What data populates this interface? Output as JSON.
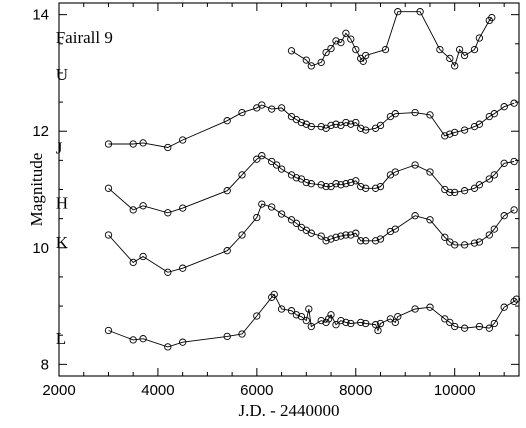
{
  "chart_data": {
    "type": "scatter",
    "title": "",
    "xlabel": "J.D. - 2440000",
    "ylabel": "Magnitude",
    "xlim": [
      2000,
      11300
    ],
    "ylim": [
      14.2,
      7.8
    ],
    "y_inverted": true,
    "x_ticks": [
      2000,
      4000,
      6000,
      8000,
      10000
    ],
    "y_ticks": [
      8,
      10,
      12,
      14
    ],
    "grid": false,
    "legend": "none",
    "annotations": [
      "Fairall 9"
    ],
    "series": [
      {
        "name": "L",
        "connected": true,
        "points": [
          [
            3000,
            8.58
          ],
          [
            3500,
            8.42
          ],
          [
            3700,
            8.44
          ],
          [
            4200,
            8.3
          ],
          [
            4500,
            8.38
          ],
          [
            5400,
            8.48
          ],
          [
            5700,
            8.52
          ],
          [
            6000,
            8.83
          ],
          [
            6300,
            9.15
          ],
          [
            6350,
            9.2
          ],
          [
            6500,
            8.95
          ],
          [
            6700,
            8.92
          ],
          [
            6800,
            8.85
          ],
          [
            6900,
            8.82
          ],
          [
            7000,
            8.75
          ],
          [
            7050,
            8.95
          ],
          [
            7100,
            8.65
          ],
          [
            7300,
            8.75
          ],
          [
            7400,
            8.72
          ],
          [
            7450,
            8.78
          ],
          [
            7500,
            8.85
          ],
          [
            7600,
            8.68
          ],
          [
            7700,
            8.75
          ],
          [
            7800,
            8.72
          ],
          [
            7900,
            8.7
          ],
          [
            8100,
            8.72
          ],
          [
            8200,
            8.7
          ],
          [
            8400,
            8.68
          ],
          [
            8450,
            8.58
          ],
          [
            8500,
            8.7
          ],
          [
            8700,
            8.78
          ],
          [
            8800,
            8.72
          ],
          [
            8850,
            8.82
          ],
          [
            9200,
            8.95
          ],
          [
            9500,
            8.98
          ],
          [
            9800,
            8.78
          ],
          [
            9900,
            8.72
          ],
          [
            10000,
            8.65
          ],
          [
            10200,
            8.62
          ],
          [
            10500,
            8.65
          ],
          [
            10700,
            8.62
          ],
          [
            10800,
            8.7
          ],
          [
            11000,
            8.98
          ],
          [
            11200,
            9.08
          ],
          [
            11250,
            9.12
          ]
        ]
      },
      {
        "name": "K",
        "connected": true,
        "points": [
          [
            3000,
            10.22
          ],
          [
            3500,
            9.75
          ],
          [
            3700,
            9.85
          ],
          [
            4200,
            9.58
          ],
          [
            4500,
            9.65
          ],
          [
            5400,
            9.95
          ],
          [
            5700,
            10.22
          ],
          [
            6000,
            10.52
          ],
          [
            6100,
            10.75
          ],
          [
            6300,
            10.7
          ],
          [
            6500,
            10.58
          ],
          [
            6700,
            10.48
          ],
          [
            6800,
            10.42
          ],
          [
            6900,
            10.35
          ],
          [
            7000,
            10.3
          ],
          [
            7100,
            10.25
          ],
          [
            7300,
            10.2
          ],
          [
            7400,
            10.12
          ],
          [
            7500,
            10.15
          ],
          [
            7600,
            10.18
          ],
          [
            7700,
            10.2
          ],
          [
            7800,
            10.22
          ],
          [
            7900,
            10.22
          ],
          [
            8000,
            10.25
          ],
          [
            8100,
            10.12
          ],
          [
            8200,
            10.12
          ],
          [
            8400,
            10.12
          ],
          [
            8500,
            10.15
          ],
          [
            8700,
            10.28
          ],
          [
            8800,
            10.32
          ],
          [
            9200,
            10.55
          ],
          [
            9500,
            10.48
          ],
          [
            9800,
            10.18
          ],
          [
            9900,
            10.1
          ],
          [
            10000,
            10.05
          ],
          [
            10200,
            10.05
          ],
          [
            10400,
            10.08
          ],
          [
            10500,
            10.1
          ],
          [
            10700,
            10.22
          ],
          [
            10800,
            10.32
          ],
          [
            11000,
            10.55
          ],
          [
            11200,
            10.65
          ]
        ]
      },
      {
        "name": "H",
        "connected": true,
        "points": [
          [
            3000,
            11.02
          ],
          [
            3500,
            10.65
          ],
          [
            3700,
            10.72
          ],
          [
            4200,
            10.6
          ],
          [
            4500,
            10.68
          ],
          [
            5400,
            10.98
          ],
          [
            5700,
            11.25
          ],
          [
            6000,
            11.52
          ],
          [
            6100,
            11.58
          ],
          [
            6300,
            11.48
          ],
          [
            6400,
            11.42
          ],
          [
            6500,
            11.35
          ],
          [
            6700,
            11.25
          ],
          [
            6800,
            11.2
          ],
          [
            6900,
            11.18
          ],
          [
            7000,
            11.12
          ],
          [
            7100,
            11.1
          ],
          [
            7300,
            11.08
          ],
          [
            7400,
            11.05
          ],
          [
            7500,
            11.05
          ],
          [
            7600,
            11.1
          ],
          [
            7700,
            11.08
          ],
          [
            7800,
            11.1
          ],
          [
            7900,
            11.12
          ],
          [
            8000,
            11.15
          ],
          [
            8100,
            11.05
          ],
          [
            8200,
            11.02
          ],
          [
            8400,
            11.02
          ],
          [
            8500,
            11.05
          ],
          [
            8700,
            11.25
          ],
          [
            8800,
            11.3
          ],
          [
            9200,
            11.42
          ],
          [
            9500,
            11.3
          ],
          [
            9800,
            11.0
          ],
          [
            9900,
            10.95
          ],
          [
            10000,
            10.95
          ],
          [
            10200,
            10.98
          ],
          [
            10400,
            11.02
          ],
          [
            10500,
            11.08
          ],
          [
            10700,
            11.18
          ],
          [
            10800,
            11.25
          ],
          [
            11000,
            11.45
          ],
          [
            11200,
            11.48
          ]
        ]
      },
      {
        "name": "J",
        "connected": true,
        "points": [
          [
            3000,
            11.78
          ],
          [
            3500,
            11.78
          ],
          [
            3700,
            11.8
          ],
          [
            4200,
            11.72
          ],
          [
            4500,
            11.85
          ],
          [
            5400,
            12.18
          ],
          [
            5700,
            12.32
          ],
          [
            6000,
            12.4
          ],
          [
            6100,
            12.45
          ],
          [
            6300,
            12.38
          ],
          [
            6500,
            12.4
          ],
          [
            6700,
            12.25
          ],
          [
            6800,
            12.2
          ],
          [
            6900,
            12.15
          ],
          [
            7000,
            12.12
          ],
          [
            7100,
            12.08
          ],
          [
            7300,
            12.08
          ],
          [
            7400,
            12.05
          ],
          [
            7500,
            12.1
          ],
          [
            7600,
            12.12
          ],
          [
            7700,
            12.1
          ],
          [
            7800,
            12.15
          ],
          [
            7900,
            12.12
          ],
          [
            8000,
            12.15
          ],
          [
            8100,
            12.05
          ],
          [
            8200,
            12.02
          ],
          [
            8400,
            12.05
          ],
          [
            8500,
            12.1
          ],
          [
            8700,
            12.25
          ],
          [
            8800,
            12.3
          ],
          [
            9200,
            12.32
          ],
          [
            9500,
            12.28
          ],
          [
            9800,
            11.92
          ],
          [
            9900,
            11.95
          ],
          [
            10000,
            11.98
          ],
          [
            10200,
            12.02
          ],
          [
            10400,
            12.08
          ],
          [
            10500,
            12.12
          ],
          [
            10700,
            12.25
          ],
          [
            10800,
            12.3
          ],
          [
            11000,
            12.42
          ],
          [
            11200,
            12.48
          ]
        ]
      },
      {
        "name": "U",
        "connected": true,
        "points": [
          [
            6700,
            13.38
          ],
          [
            7000,
            13.22
          ],
          [
            7100,
            13.12
          ],
          [
            7300,
            13.18
          ],
          [
            7400,
            13.35
          ],
          [
            7500,
            13.42
          ],
          [
            7600,
            13.55
          ],
          [
            7700,
            13.52
          ],
          [
            7800,
            13.68
          ],
          [
            7900,
            13.58
          ],
          [
            8000,
            13.4
          ],
          [
            8100,
            13.25
          ],
          [
            8150,
            13.2
          ],
          [
            8200,
            13.3
          ],
          [
            8600,
            13.4
          ],
          [
            8850,
            14.05
          ],
          [
            9300,
            14.05
          ],
          [
            9700,
            13.4
          ],
          [
            9900,
            13.25
          ],
          [
            10000,
            13.12
          ],
          [
            10100,
            13.4
          ],
          [
            10200,
            13.3
          ],
          [
            10400,
            13.4
          ],
          [
            10500,
            13.6
          ],
          [
            10700,
            13.9
          ],
          [
            10750,
            13.95
          ]
        ]
      }
    ],
    "labels": [
      {
        "text": "L",
        "at_x": 2500,
        "at_y": 8.45
      },
      {
        "text": "K",
        "at_x": 2500,
        "at_y": 10.1
      },
      {
        "text": "H",
        "at_x": 2500,
        "at_y": 10.78
      },
      {
        "text": "J",
        "at_x": 2500,
        "at_y": 11.72
      },
      {
        "text": "U",
        "at_x": 2500,
        "at_y": 12.98
      },
      {
        "text": "Fairall 9",
        "at_x": 2500,
        "at_y": 13.62
      }
    ]
  }
}
